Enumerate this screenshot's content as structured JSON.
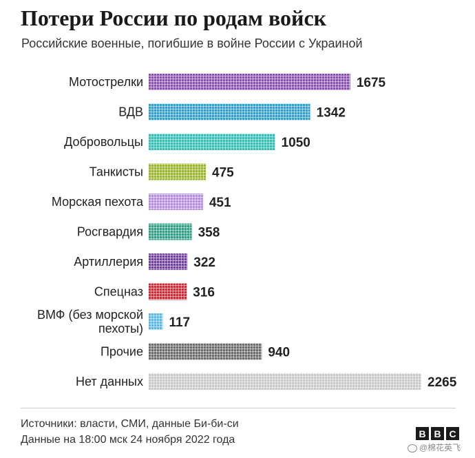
{
  "title": "Потери России по родам войск",
  "subtitle": "Российские военные, погибшие в войне России с Украиной",
  "chart_data": {
    "type": "bar",
    "orientation": "horizontal",
    "title": "Потери России по родам войск",
    "subtitle": "Российские военные, погибшие в войне России с Украиной",
    "categories": [
      [
        "Мотострелки"
      ],
      [
        "ВДВ"
      ],
      [
        "Добровольцы"
      ],
      [
        "Танкисты"
      ],
      [
        "Морская пехота"
      ],
      [
        "Росгвардия"
      ],
      [
        "Артиллерия"
      ],
      [
        "Спецназ"
      ],
      [
        "ВМФ (без морской",
        "пехоты)"
      ],
      [
        "Прочие"
      ],
      [
        "Нет данных"
      ]
    ],
    "values": [
      1675,
      1342,
      1050,
      475,
      451,
      358,
      322,
      316,
      117,
      940,
      2265
    ],
    "value_labels": [
      "1675",
      "1342",
      "1050",
      "475",
      "451",
      "358",
      "322",
      "316",
      "117",
      "940",
      "2265"
    ],
    "colors": [
      "#8a4fb3",
      "#2f9fcf",
      "#2fbfb5",
      "#9bb52a",
      "#b58de0",
      "#2e9e86",
      "#6f3f9e",
      "#cf2a33",
      "#5bb8e6",
      "#6b6b6b",
      "#c9c9c9"
    ],
    "xlim": [
      0,
      2265
    ],
    "grid": false,
    "legend": "none"
  },
  "footer": {
    "source": "Источники: власти, СМИ, данные Би-би-си",
    "date": "Данные на 18:00 мск 24 ноября 2022 года"
  },
  "logo": [
    "B",
    "B",
    "C"
  ],
  "watermark": "@棉花英飞"
}
